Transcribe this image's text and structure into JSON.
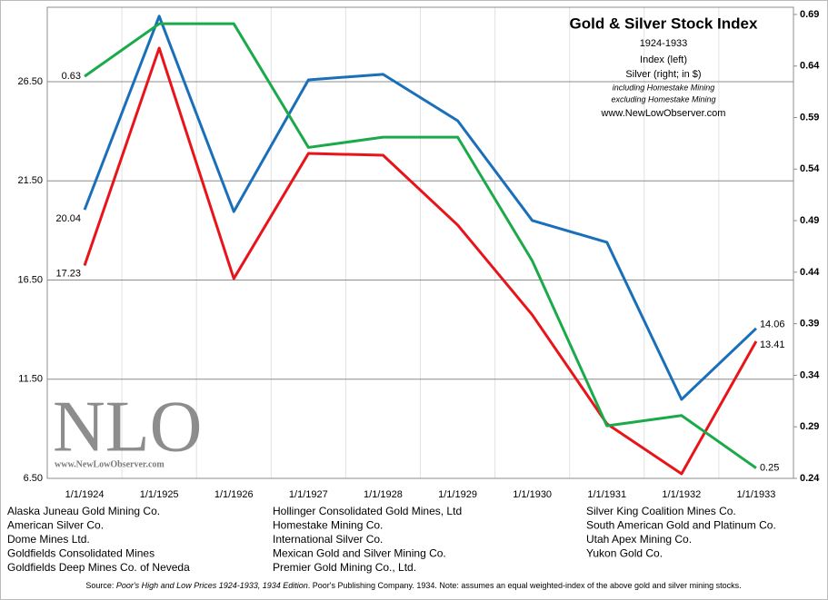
{
  "chart_data": {
    "type": "line",
    "title": "Gold & Silver Stock Index",
    "subtitle": "1924-1933",
    "annotations": [
      "Index (left)",
      "www.NewLowObserver.com"
    ],
    "categories": [
      "1/1/1924",
      "1/1/1925",
      "1/1/1926",
      "1/1/1927",
      "1/1/1928",
      "1/1/1929",
      "1/1/1930",
      "1/1/1931",
      "1/1/1932",
      "1/1/1933"
    ],
    "series": [
      {
        "name": "including Homestake Mining",
        "color": "#1a6fba",
        "axis": "y",
        "values": [
          20.04,
          29.8,
          19.95,
          26.59,
          26.87,
          24.53,
          19.5,
          18.4,
          10.48,
          14.06
        ],
        "value_labels": [
          "20.04",
          null,
          null,
          null,
          null,
          null,
          null,
          null,
          null,
          "14.06"
        ]
      },
      {
        "name": "excluding Homestake Mining",
        "color": "#e8141a",
        "axis": "y",
        "values": [
          17.23,
          28.19,
          16.57,
          22.88,
          22.79,
          19.27,
          14.74,
          9.25,
          6.73,
          13.41
        ],
        "value_labels": [
          "17.23",
          null,
          null,
          null,
          null,
          null,
          null,
          null,
          null,
          "13.41"
        ]
      },
      {
        "name": "Silver (right; in $)",
        "color": "#1aaa4a",
        "axis": "y2",
        "values": [
          0.63,
          0.681,
          0.681,
          0.561,
          0.571,
          0.571,
          0.451,
          0.291,
          0.301,
          0.25
        ],
        "value_labels": [
          "0.63",
          null,
          null,
          null,
          null,
          null,
          null,
          null,
          null,
          "0.25"
        ]
      }
    ],
    "ylim": [
      6.5,
      30.25
    ],
    "yticks": [
      {
        "value": 6.5,
        "label": "6.50"
      },
      {
        "value": 11.5,
        "label": "11.50"
      },
      {
        "value": 16.5,
        "label": "16.50"
      },
      {
        "value": 21.5,
        "label": "21.50"
      },
      {
        "value": 26.5,
        "label": "26.50"
      }
    ],
    "y2lim": [
      0.24,
      0.697
    ],
    "y2ticks": [
      0.24,
      0.29,
      0.34,
      0.39,
      0.44,
      0.49,
      0.54,
      0.59,
      0.64,
      0.69
    ],
    "y2_color": "#1aaa4a",
    "grid": true
  },
  "watermark": {
    "logo": "NLO",
    "url": "www.NewLowObserver.com"
  },
  "companies": [
    [
      "Alaska Juneau Gold Mining Co.",
      "American Silver Co.",
      "Dome Mines Ltd.",
      "Goldfields Consolidated Mines",
      "Goldfields Deep Mines Co. of Neveda"
    ],
    [
      "Hollinger Consolidated Gold Mines, Ltd",
      "Homestake Mining Co.",
      "International Silver Co.",
      "Mexican Gold and Silver Mining Co.",
      "Premier Gold Mining Co., Ltd."
    ],
    [
      "Silver King Coalition Mines Co.",
      "South American Gold and Platinum Co.",
      "Utah Apex Mining Co.",
      "Yukon Gold Co."
    ]
  ],
  "source": {
    "prefix": "Source: ",
    "italic": "Poor's High and Low Prices 1924-1933, 1934 Edition",
    "rest": ". Poor's Publishing Company. 1934.  Note: assumes an equal weighted-index of the above gold and silver mining stocks."
  }
}
